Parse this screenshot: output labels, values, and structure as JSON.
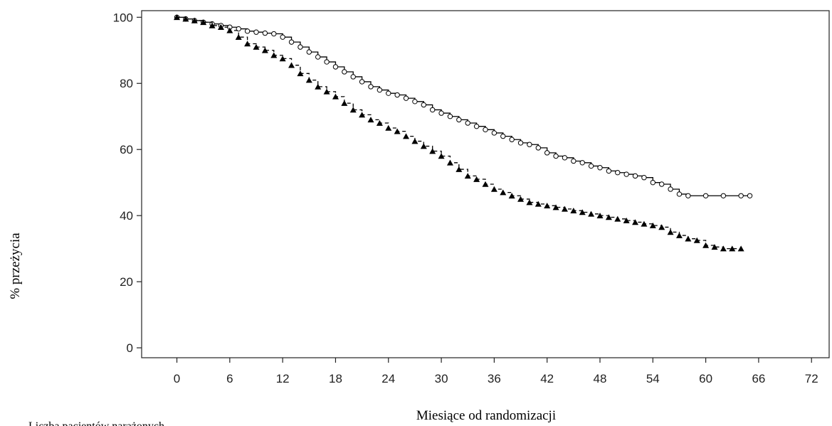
{
  "chart_data": {
    "type": "line",
    "title": "",
    "xlabel": "Miesiące od randomizacji",
    "ylabel": "% przeżycia",
    "footnote": "Liczba pacjentów narażonych",
    "xlim": [
      -4,
      74
    ],
    "ylim": [
      -3,
      102
    ],
    "xticks": [
      0,
      6,
      12,
      18,
      24,
      30,
      36,
      42,
      48,
      54,
      60,
      66,
      72
    ],
    "yticks": [
      0,
      20,
      40,
      60,
      80,
      100
    ],
    "grid": false,
    "legend": "none",
    "series": [
      {
        "line_style": "solid",
        "marker": "open-circle",
        "color": "#000000",
        "x": [
          0,
          1,
          2,
          3,
          4,
          5,
          6,
          7,
          8,
          9,
          10,
          11,
          12,
          13,
          14,
          15,
          16,
          17,
          18,
          19,
          20,
          21,
          22,
          23,
          24,
          25,
          26,
          27,
          28,
          29,
          30,
          31,
          32,
          33,
          34,
          35,
          36,
          37,
          38,
          39,
          40,
          41,
          42,
          43,
          44,
          45,
          46,
          47,
          48,
          49,
          50,
          51,
          52,
          53,
          54,
          55,
          56,
          57,
          58,
          60,
          62,
          64,
          65
        ],
        "y": [
          100,
          99.5,
          99,
          98.5,
          98,
          97.5,
          97,
          96.5,
          95.8,
          95.5,
          95.2,
          95,
          94,
          92.5,
          91,
          89.5,
          88,
          86.5,
          85,
          83.5,
          82,
          80.5,
          79,
          78,
          77,
          76.5,
          75.5,
          74.5,
          73.5,
          72,
          71,
          70,
          69,
          68,
          67,
          66,
          65,
          64,
          63,
          62,
          61.5,
          60.5,
          59,
          58,
          57.5,
          56.5,
          56,
          55,
          54.5,
          53.5,
          53,
          52.5,
          52,
          51.5,
          50,
          49.5,
          48,
          46.5,
          46,
          46,
          46,
          46,
          46
        ]
      },
      {
        "line_style": "dashed",
        "marker": "filled-triangle",
        "color": "#000000",
        "x": [
          0,
          1,
          2,
          3,
          4,
          5,
          6,
          7,
          8,
          9,
          10,
          11,
          12,
          13,
          14,
          15,
          16,
          17,
          18,
          19,
          20,
          21,
          22,
          23,
          24,
          25,
          26,
          27,
          28,
          29,
          30,
          31,
          32,
          33,
          34,
          35,
          36,
          37,
          38,
          39,
          40,
          41,
          42,
          43,
          44,
          45,
          46,
          47,
          48,
          49,
          50,
          51,
          52,
          53,
          54,
          55,
          56,
          57,
          58,
          59,
          60,
          61,
          62,
          63,
          64
        ],
        "y": [
          100,
          99.5,
          99,
          98.5,
          97.5,
          97,
          96,
          94,
          92,
          91,
          90,
          88.5,
          87.5,
          85.5,
          83,
          81,
          79,
          77.5,
          76,
          74,
          72,
          70.5,
          69,
          68,
          66.5,
          65.5,
          64,
          62.5,
          61,
          59.5,
          58,
          56,
          54,
          52,
          51,
          49.5,
          48,
          47,
          46,
          45,
          44,
          43.5,
          43,
          42.5,
          42,
          41.5,
          41,
          40.5,
          40,
          39.5,
          39,
          38.5,
          38,
          37.5,
          37,
          36.5,
          35,
          34,
          33,
          32.5,
          31,
          30.5,
          30,
          30,
          30
        ]
      }
    ]
  }
}
